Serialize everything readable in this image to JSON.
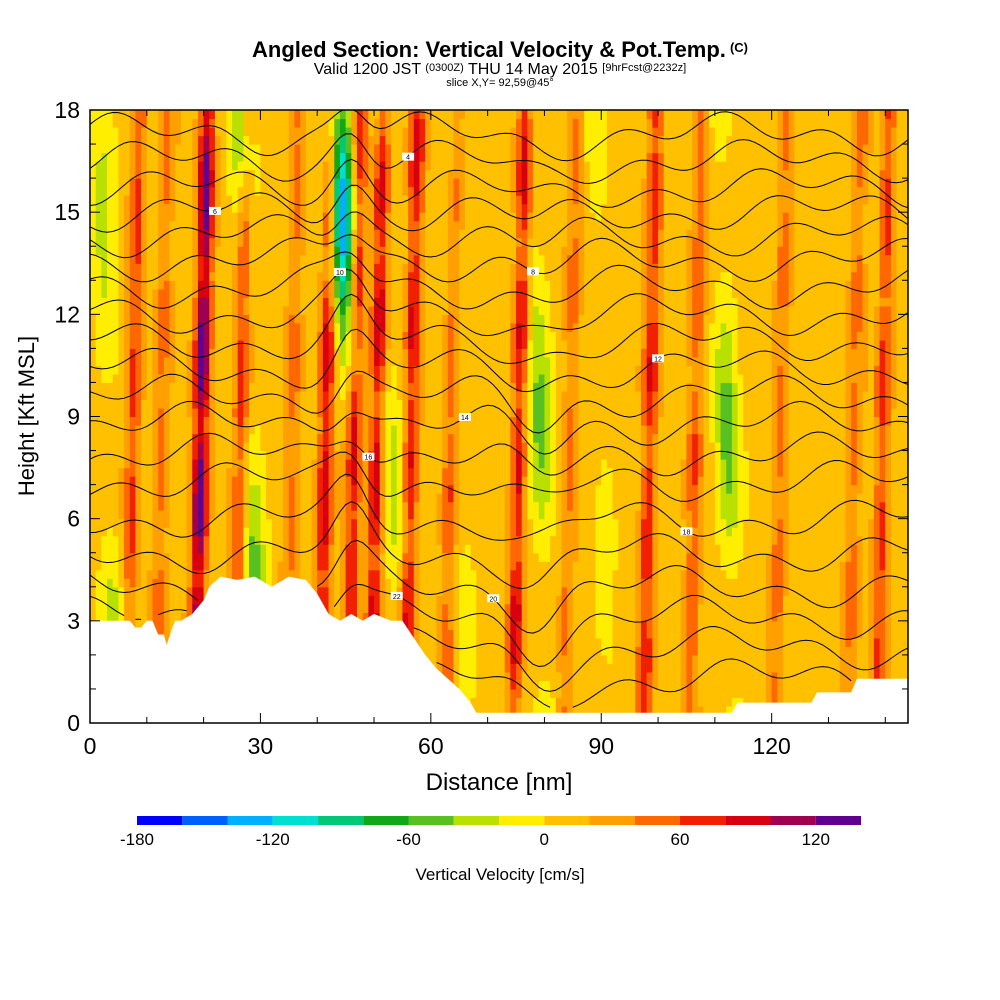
{
  "header": {
    "title": "Angled Section: Vertical Velocity & Pot.Temp.",
    "title_unit": "(C)",
    "valid_prefix": "Valid 1200 JST",
    "valid_zulu": "(0300Z)",
    "valid_date": "THU 14 May 2015",
    "forecast": "[9hrFcst@2232z]",
    "slice": "slice X,Y= 92,59@45°"
  },
  "chart_data": {
    "type": "heatmap",
    "title": "Angled Section: Vertical Velocity & Pot.Temp. (C)",
    "xlabel": "Distance [nm]",
    "ylabel": "Height [Kft MSL]",
    "xlim": [
      0,
      144
    ],
    "ylim": [
      0,
      18
    ],
    "x_ticks": [
      0,
      30,
      60,
      90,
      120
    ],
    "y_ticks": [
      0,
      3,
      6,
      9,
      12,
      15,
      18
    ],
    "colorbar": {
      "label": "Vertical Velocity [cm/s]",
      "ticks": [
        -180,
        -120,
        -60,
        0,
        60,
        120
      ],
      "range": [
        -180,
        140
      ],
      "step": 20,
      "colors": [
        "#0000ff",
        "#0060ff",
        "#00b0ff",
        "#00e0d0",
        "#00c878",
        "#10a818",
        "#58c020",
        "#b8e000",
        "#ffee00",
        "#ffc000",
        "#ffa000",
        "#ff6800",
        "#f02000",
        "#d80010",
        "#a00050",
        "#600090"
      ]
    },
    "updraft_columns": [
      {
        "x": 7,
        "peak": 60
      },
      {
        "x": 12,
        "peak": 40
      },
      {
        "x": 19,
        "peak": 130
      },
      {
        "x": 26,
        "peak": 70
      },
      {
        "x": 35,
        "peak": 40
      },
      {
        "x": 41,
        "peak": 90
      },
      {
        "x": 46,
        "peak": 80
      },
      {
        "x": 50,
        "peak": 90
      },
      {
        "x": 56,
        "peak": 80
      },
      {
        "x": 63,
        "peak": 50
      },
      {
        "x": 75,
        "peak": 80
      },
      {
        "x": 84,
        "peak": 40
      },
      {
        "x": 98,
        "peak": 70
      },
      {
        "x": 106,
        "peak": 50
      },
      {
        "x": 121,
        "peak": 40
      },
      {
        "x": 134,
        "peak": 40
      },
      {
        "x": 139,
        "peak": 60
      }
    ],
    "downdraft_columns": [
      {
        "x": 3,
        "peak": -40
      },
      {
        "x": 28,
        "peak": -60
      },
      {
        "x": 45,
        "peak": -160
      },
      {
        "x": 53,
        "peak": -40
      },
      {
        "x": 65,
        "peak": -20
      },
      {
        "x": 79,
        "peak": -60
      },
      {
        "x": 90,
        "peak": -20
      },
      {
        "x": 112,
        "peak": -60
      }
    ],
    "terrain": [
      [
        0,
        3.0
      ],
      [
        3,
        3.0
      ],
      [
        4,
        3.0
      ],
      [
        6,
        3.0
      ],
      [
        7,
        3.0
      ],
      [
        8,
        2.8
      ],
      [
        9,
        2.8
      ],
      [
        10,
        3.0
      ],
      [
        11,
        3.0
      ],
      [
        12,
        2.6
      ],
      [
        13,
        2.6
      ],
      [
        13.5,
        2.3
      ],
      [
        14.5,
        2.8
      ],
      [
        15,
        3.0
      ],
      [
        16,
        3.0
      ],
      [
        18,
        3.2
      ],
      [
        20,
        3.6
      ],
      [
        21,
        4.0
      ],
      [
        23,
        4.3
      ],
      [
        26,
        4.2
      ],
      [
        29,
        4.3
      ],
      [
        32,
        4.0
      ],
      [
        35,
        4.3
      ],
      [
        38,
        4.2
      ],
      [
        40,
        3.8
      ],
      [
        42,
        3.2
      ],
      [
        44,
        3.0
      ],
      [
        46,
        3.2
      ],
      [
        48,
        3.0
      ],
      [
        50,
        3.2
      ],
      [
        53,
        3.0
      ],
      [
        55,
        3.0
      ],
      [
        57,
        2.5
      ],
      [
        59,
        2.0
      ],
      [
        61,
        1.6
      ],
      [
        63,
        1.3
      ],
      [
        65,
        1.0
      ],
      [
        67,
        0.6
      ],
      [
        68,
        0.3
      ],
      [
        70,
        0.3
      ],
      [
        80,
        0.3
      ],
      [
        95,
        0.3
      ],
      [
        113,
        0.3
      ],
      [
        114,
        0.6
      ],
      [
        127,
        0.6
      ],
      [
        128,
        0.9
      ],
      [
        134,
        0.9
      ],
      [
        135,
        1.3
      ],
      [
        144,
        1.3
      ]
    ],
    "theta_contours": [
      {
        "base": 1.3,
        "label": ""
      },
      {
        "base": 2.2,
        "label": ""
      },
      {
        "base": 3.1,
        "label": "22"
      },
      {
        "base": 4.0,
        "label": "20"
      },
      {
        "base": 5.0,
        "label": ""
      },
      {
        "base": 6.0,
        "label": "18"
      },
      {
        "base": 7.1,
        "label": ""
      },
      {
        "base": 7.9,
        "label": "16"
      },
      {
        "base": 8.8,
        "label": "14"
      },
      {
        "base": 9.6,
        "label": ""
      },
      {
        "base": 10.4,
        "label": "12"
      },
      {
        "base": 11.2,
        "label": ""
      },
      {
        "base": 12.0,
        "label": "10"
      },
      {
        "base": 12.8,
        "label": ""
      },
      {
        "base": 13.6,
        "label": "8"
      },
      {
        "base": 14.3,
        "label": ""
      },
      {
        "base": 15.0,
        "label": "6"
      },
      {
        "base": 15.7,
        "label": ""
      },
      {
        "base": 16.5,
        "label": "4"
      },
      {
        "base": 17.3,
        "label": ""
      }
    ]
  }
}
